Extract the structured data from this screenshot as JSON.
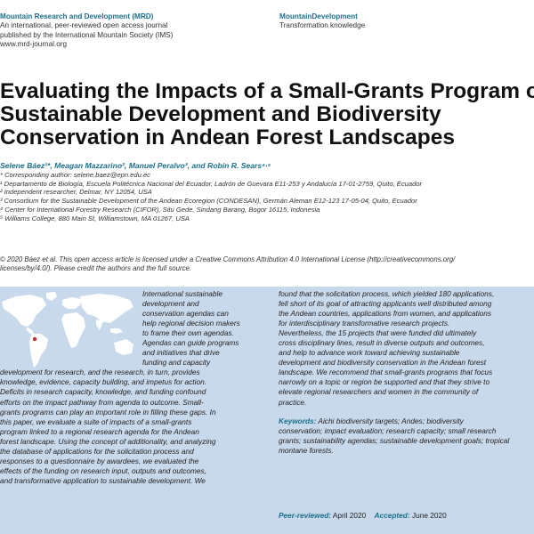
{
  "header": {
    "journal_name": "Mountain Research and Development (MRD)",
    "journal_line2": "An international, peer-reviewed open access journal",
    "journal_line3": "published by the International Mountain Society (IMS)",
    "journal_url": "www.mrd-journal.org",
    "section_name": "MountainDevelopment",
    "section_sub": "Transformation knowledge"
  },
  "title_lines": [
    "Evaluating the Impacts of a Small-Grants Program on",
    "Sustainable Development and Biodiversity",
    "Conservation in Andean Forest Landscapes"
  ],
  "authors": "Selene Báez¹*, Meagan Mazzarino², Manuel Peralvo³, and Robin R. Sears⁴·⁵",
  "affiliations": [
    "* Corresponding author: selene.baez@epn.edu.ec",
    "¹ Departamento de Biología, Escuela Politécnica Nacional del Ecuador, Ladrón de Guevara E11-253 y Andalucía 17-01-2759, Quito, Ecuador",
    "² Independent researcher, Delmar, NY 12054, USA",
    "³ Consortium for the Sustainable Development of the Andean Ecoregion (CONDESAN), Germán Aleman E12-123 17-05-04, Quito, Ecuador",
    "⁴ Center for International Forestry Research (CIFOR), Situ Gede, Sindang Barang, Bogor 16115, Indonesia",
    "⁵ Williams College, 880 Main St, Williamstown, MA 01267, USA"
  ],
  "license_lines": [
    "© 2020 Báez et al. This open access article is licensed under a Creative Commons Attribution 4.0 International License (http://creativecommons.org/",
    "licenses/by/4.0/). Please credit the authors and the full source."
  ],
  "abstract_left_wrapped": [
    "International sustainable",
    "development and",
    "conservation agendas can",
    "help regional decision makers",
    "to frame their own agendas.",
    "Agendas can guide programs",
    "and initiatives that drive",
    "funding and capacity"
  ],
  "abstract_left_full": [
    "development for research, and the research, in turn, provides",
    "knowledge, evidence, capacity building, and impetus for action.",
    "Deficits in research capacity, knowledge, and funding confound",
    "efforts on the impact pathway from agenda to outcome. Small-",
    "grants programs can play an important role in filling these gaps. In",
    "this paper, we evaluate a suite of impacts of a small-grants",
    "program linked to a regional research agenda for the Andean",
    "forest landscape. Using the concept of additionality, and analyzing",
    "the database of applications for the solicitation process and",
    "responses to a questionnaire by awardees, we evaluated the",
    "effects of the funding on research input, outputs and outcomes,",
    "and transformative application to sustainable development. We"
  ],
  "abstract_right": [
    "found that the solicitation process, which yielded 180 applications,",
    "fell short of its goal of attracting applicants well distributed among",
    "the Andean countries, applications from women, and applications",
    "for interdisciplinary transformative research projects.",
    "Nevertheless, the 15 projects that were funded did ultimately",
    "cross disciplinary lines, result in diverse outputs and outcomes,",
    "and help to advance work toward achieving sustainable",
    "development and biodiversity conservation in the Andean forest",
    "landscape. We recommend that small-grants programs that focus",
    "narrowly on a topic or region be supported and that they strive to",
    "elevate regional researchers and women in the community of",
    "practice."
  ],
  "keywords_label": "Keywords:",
  "keywords_lines": [
    "Aichi biodiversity targets; Andes; biodiversity",
    "conservation; impact evaluation; research capacity; small research",
    "grants; sustainability agendas; sustainable development goals; tropical",
    "montane forests."
  ],
  "peer_reviewed_label": "Peer-reviewed:",
  "peer_reviewed_value": "April 2020",
  "accepted_label": "Accepted:",
  "accepted_value": "June 2020",
  "colors": {
    "accent": "#1b6f8c",
    "panel": "#c9d9ec",
    "map_land": "#ffffff",
    "marker": "#cc2b2b"
  }
}
